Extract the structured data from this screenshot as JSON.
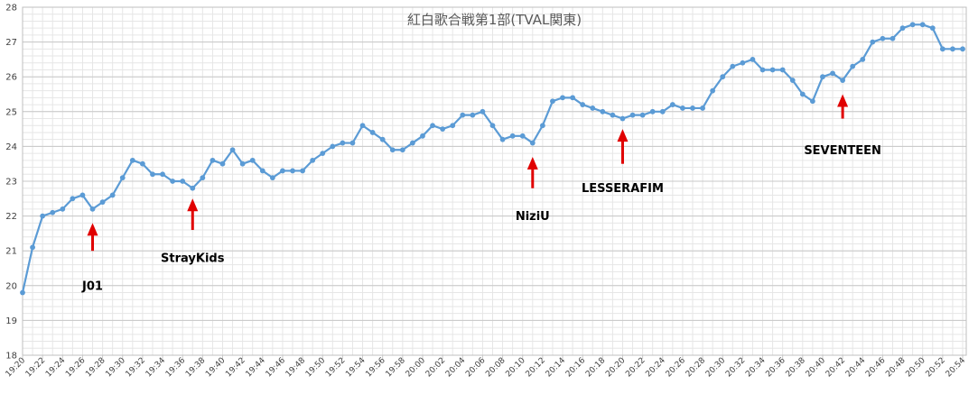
{
  "chart_data": {
    "type": "line",
    "title": "紅白歌合戦第1部(TVAL関東)",
    "xlabel": "",
    "ylabel": "",
    "ylim": [
      18,
      28
    ],
    "y_ticks": [
      18,
      19,
      20,
      21,
      22,
      23,
      24,
      25,
      26,
      27,
      28
    ],
    "grid": true,
    "x_minor_grid": true,
    "y_minor_grid": true,
    "x_start": "19:20",
    "x_step_minutes": 1,
    "x_tick_labels": [
      "19:20",
      "19:22",
      "19:24",
      "19:26",
      "19:28",
      "19:30",
      "19:32",
      "19:34",
      "19:36",
      "19:38",
      "19:40",
      "19:42",
      "19:44",
      "19:46",
      "19:48",
      "19:50",
      "19:52",
      "19:54",
      "19:56",
      "19:58",
      "20:00",
      "20:02",
      "20:04",
      "20:06",
      "20:08",
      "20:10",
      "20:12",
      "20:14",
      "20:16",
      "20:18",
      "20:20",
      "20:22",
      "20:24",
      "20:26",
      "20:28",
      "20:30",
      "20:32",
      "20:34",
      "20:36",
      "20:38",
      "20:40",
      "20:42",
      "20:44",
      "20:46",
      "20:48",
      "20:50",
      "20:52",
      "20:54"
    ],
    "series": [
      {
        "color": "#5b9bd5",
        "values": [
          19.8,
          21.1,
          22.0,
          22.1,
          22.2,
          22.5,
          22.6,
          22.2,
          22.4,
          22.6,
          23.1,
          23.6,
          23.5,
          23.2,
          23.2,
          23.0,
          23.0,
          22.8,
          23.1,
          23.6,
          23.5,
          23.9,
          23.5,
          23.6,
          23.3,
          23.1,
          23.3,
          23.3,
          23.3,
          23.6,
          23.8,
          24.0,
          24.1,
          24.1,
          24.6,
          24.4,
          24.2,
          23.9,
          23.9,
          24.1,
          24.3,
          24.6,
          24.5,
          24.6,
          24.9,
          24.9,
          25.0,
          24.6,
          24.2,
          24.3,
          24.3,
          24.1,
          24.6,
          25.3,
          25.4,
          25.4,
          25.2,
          25.1,
          25.0,
          24.9,
          24.8,
          24.9,
          24.9,
          25.0,
          25.0,
          25.2,
          25.1,
          25.1,
          25.1,
          25.6,
          26.0,
          26.3,
          26.4,
          26.5,
          26.2,
          26.2,
          26.2,
          25.9,
          25.5,
          25.3,
          26.0,
          26.1,
          25.9,
          26.3,
          26.5,
          27.0,
          27.1,
          27.1,
          27.4,
          27.5,
          27.5,
          27.4,
          26.8,
          26.8,
          26.8
        ]
      }
    ],
    "annotations": [
      {
        "label": "J01",
        "x": "19:27",
        "arrow_tip_y": 21.8,
        "arrow_base_y": 21.0,
        "label_y": 20.0
      },
      {
        "label": "StrayKids",
        "x": "19:37",
        "arrow_tip_y": 22.5,
        "arrow_base_y": 21.6,
        "label_y": 20.8
      },
      {
        "label": "NiziU",
        "x": "20:11",
        "arrow_tip_y": 23.7,
        "arrow_base_y": 22.8,
        "label_y": 22.0
      },
      {
        "label": "LESSERAFIM",
        "x": "20:20",
        "arrow_tip_y": 24.5,
        "arrow_base_y": 23.5,
        "label_y": 22.8
      },
      {
        "label": "SEVENTEEN",
        "x": "20:42",
        "arrow_tip_y": 25.5,
        "arrow_base_y": 24.8,
        "label_y": 23.9
      }
    ],
    "colors": {
      "line": "#5b9bd5",
      "annotation_arrow": "#e00000",
      "major_grid": "#c8c8c8",
      "minor_grid": "#e6e6e6",
      "plot_border": "#bfbfbf"
    }
  }
}
